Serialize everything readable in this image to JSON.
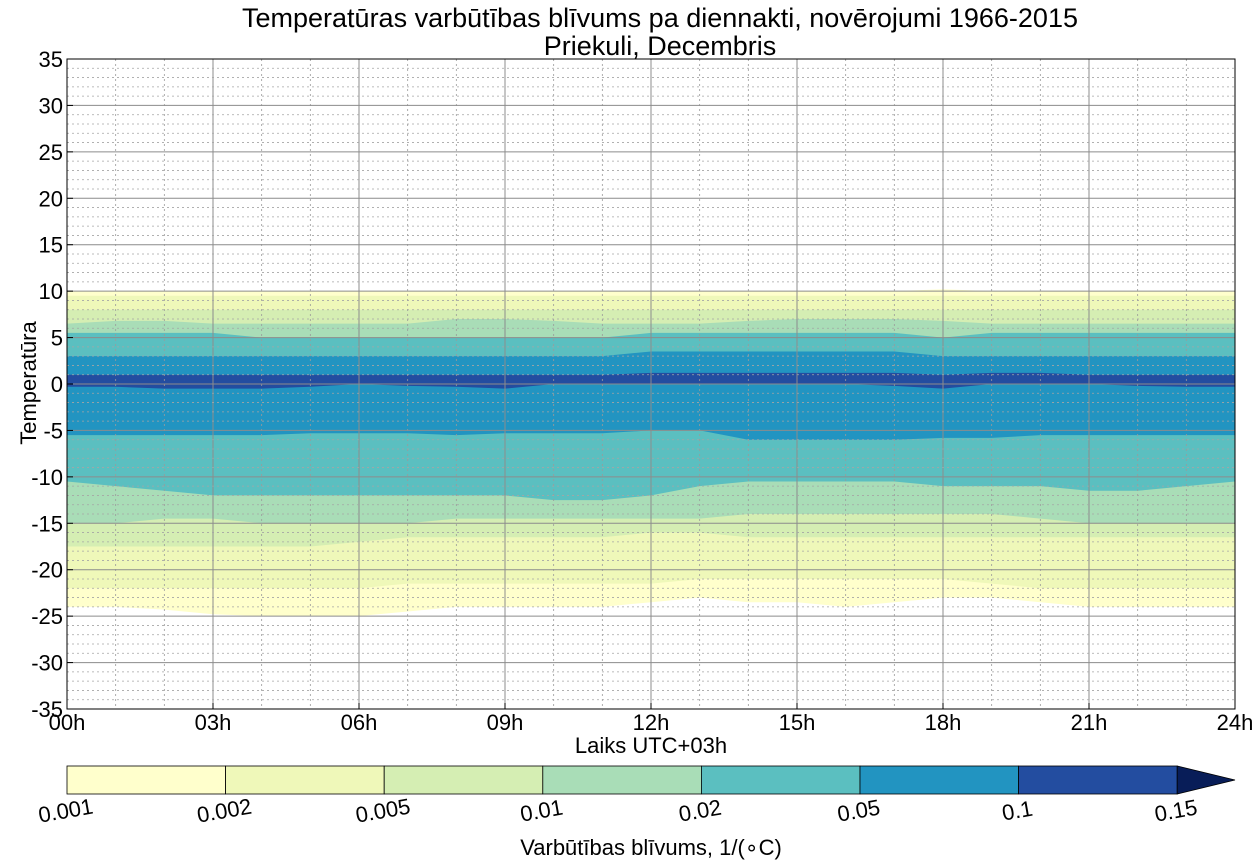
{
  "chart_data": {
    "type": "heatmap",
    "subtype": "filled-contour",
    "title": "Temperatūras varbūtības blīvums pa diennakti, novērojumi 1966-2015",
    "subtitle": "Priekuli, Decembris",
    "xlabel": "Laiks UTC+03h",
    "ylabel": "Temperatūra",
    "x_ticks": [
      "00h",
      "03h",
      "06h",
      "09h",
      "12h",
      "15h",
      "18h",
      "21h",
      "24h"
    ],
    "x_range": [
      0,
      24
    ],
    "y_range": [
      -35,
      35
    ],
    "y_ticks": [
      35,
      30,
      25,
      20,
      15,
      10,
      5,
      0,
      -5,
      -10,
      -15,
      -20,
      -25,
      -30,
      -35
    ],
    "grid": true,
    "colorbar": {
      "label": "Varbūtības blīvums, 1/(∘C)",
      "tick_labels": [
        "0.001",
        "0.002",
        "0.005",
        "0.01",
        "0.02",
        "0.05",
        "0.1",
        "0.15"
      ],
      "colors": [
        "#ffffcc",
        "#eff8b9",
        "#d5eeb3",
        "#a9ddb7",
        "#5bbfc0",
        "#2294c1",
        "#234da0",
        "#081d58"
      ],
      "extend": "max"
    },
    "hours": [
      0,
      1,
      2,
      3,
      4,
      5,
      6,
      7,
      8,
      9,
      10,
      11,
      12,
      13,
      14,
      15,
      16,
      17,
      18,
      19,
      20,
      21,
      22,
      23,
      24
    ],
    "bands": [
      {
        "level": "0.001",
        "color": "#ffffcc",
        "top": [
          10,
          10,
          10,
          10,
          10,
          10,
          10,
          10,
          10,
          10,
          10,
          10,
          10,
          10,
          10,
          10,
          10,
          10,
          10.2,
          10,
          10,
          10,
          10,
          10,
          10
        ],
        "bottom": [
          -24,
          -24,
          -24.3,
          -24.8,
          -25,
          -25,
          -25,
          -24.5,
          -24,
          -24,
          -24,
          -24,
          -23.5,
          -23,
          -23.5,
          -23.5,
          -24,
          -23.5,
          -23,
          -23,
          -23.5,
          -24,
          -24,
          -24,
          -24
        ]
      },
      {
        "level": "0.002",
        "color": "#eff8b9",
        "top": [
          9.5,
          9.5,
          9.5,
          9.5,
          9.5,
          9.5,
          9.5,
          9.5,
          9.5,
          9.5,
          9.5,
          9.5,
          9.5,
          9.5,
          9.5,
          9.5,
          9.5,
          9.5,
          9.5,
          9.5,
          9.5,
          9.5,
          9.5,
          9.5,
          9.5
        ],
        "bottom": [
          -22,
          -22,
          -22,
          -22,
          -22,
          -22,
          -22,
          -21.5,
          -21.5,
          -21.5,
          -21.5,
          -21.5,
          -21.5,
          -21,
          -21,
          -21,
          -21,
          -21,
          -21,
          -21.5,
          -22,
          -22,
          -22,
          -22,
          -22
        ]
      },
      {
        "level": "0.005",
        "color": "#d5eeb3",
        "top": [
          8,
          8,
          8,
          8,
          8,
          8,
          8,
          8,
          8,
          8,
          8,
          8,
          8,
          8,
          8,
          8,
          8,
          8,
          8,
          8,
          8,
          8,
          8,
          8,
          8
        ],
        "bottom": [
          -17.5,
          -17.5,
          -17.5,
          -17.5,
          -17.5,
          -17.5,
          -17,
          -16.5,
          -16.5,
          -16.5,
          -16.5,
          -16.5,
          -16,
          -16,
          -16.5,
          -16.5,
          -16.5,
          -16.5,
          -16.5,
          -16.5,
          -16.5,
          -16.5,
          -16.5,
          -16.5,
          -16.5
        ]
      },
      {
        "level": "0.01",
        "color": "#a9ddb7",
        "top": [
          6.5,
          6.8,
          6.8,
          6.5,
          6.5,
          6.5,
          6.5,
          6.5,
          7,
          7,
          6.8,
          6.5,
          6.5,
          6.5,
          6.8,
          7,
          7,
          7,
          6.8,
          6.5,
          6.5,
          6.5,
          6.5,
          6.5,
          6.5
        ],
        "bottom": [
          -15,
          -15,
          -14.5,
          -14.5,
          -15,
          -15,
          -15,
          -15,
          -14.5,
          -14.5,
          -14.5,
          -14.5,
          -14.5,
          -14.5,
          -14,
          -14,
          -14,
          -14,
          -14,
          -14,
          -14.5,
          -15,
          -15,
          -15,
          -15
        ]
      },
      {
        "level": "0.02",
        "color": "#5bbfc0",
        "top": [
          5.5,
          5.5,
          5.5,
          5.5,
          5,
          5,
          5,
          5,
          5,
          5,
          5,
          5,
          5.5,
          5.5,
          5.5,
          5.5,
          5.5,
          5.5,
          5,
          5.5,
          5.5,
          5.5,
          5.5,
          5.5,
          5.5
        ],
        "bottom": [
          -10.5,
          -11,
          -11.5,
          -12,
          -12,
          -12,
          -12,
          -12,
          -12,
          -12,
          -12.5,
          -12.5,
          -12,
          -11,
          -10.5,
          -10.5,
          -10.5,
          -10.5,
          -11,
          -11,
          -11,
          -11.5,
          -11.5,
          -11,
          -10.5
        ]
      },
      {
        "level": "0.05",
        "color": "#2294c1",
        "top": [
          3,
          3,
          3,
          3,
          3,
          3,
          3,
          3,
          3,
          3,
          3,
          3,
          3.5,
          3.5,
          3.5,
          3.5,
          3.5,
          3.5,
          3,
          3,
          3,
          3,
          3,
          3,
          3
        ],
        "bottom": [
          -5.5,
          -5.5,
          -5.5,
          -5.5,
          -5.5,
          -5.3,
          -5.3,
          -5.3,
          -5.5,
          -5.3,
          -5.3,
          -5.3,
          -5,
          -5,
          -6,
          -6,
          -6,
          -6,
          -5.8,
          -5.8,
          -5.5,
          -5.5,
          -5.5,
          -5.5,
          -5.5
        ]
      },
      {
        "level": "0.1",
        "color": "#234da0",
        "top": [
          1,
          1,
          1,
          1,
          1,
          1,
          1,
          1,
          1,
          1,
          1,
          1,
          1.2,
          1.2,
          1.2,
          1.2,
          1.2,
          1.2,
          1,
          1.2,
          1.2,
          1,
          1,
          1,
          1
        ],
        "bottom": [
          -0.3,
          -0.3,
          -0.5,
          -0.5,
          -0.5,
          -0.3,
          0,
          -0.2,
          -0.3,
          -0.5,
          0,
          0,
          0,
          0,
          0,
          0,
          0,
          -0.2,
          -0.5,
          0,
          0,
          0,
          -0.2,
          -0.3,
          -0.3
        ]
      }
    ]
  }
}
